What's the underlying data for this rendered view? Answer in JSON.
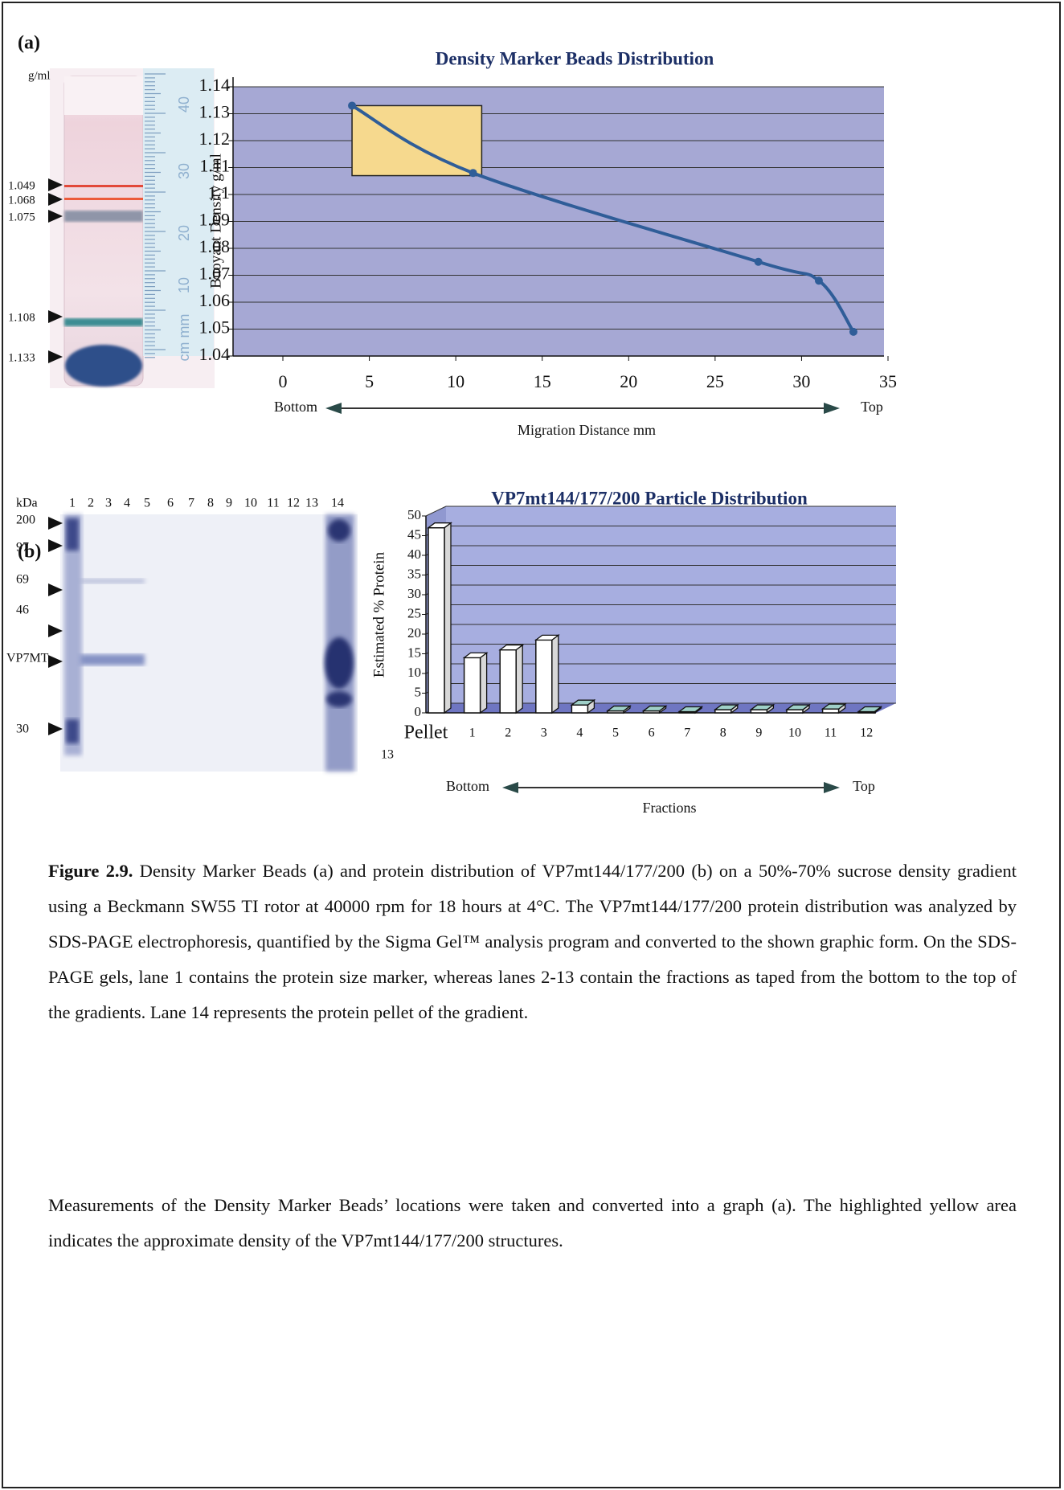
{
  "panel_labels": [
    "(a)",
    "(b)"
  ],
  "tube": {
    "unit": "g/ml",
    "markers": [
      "1.049",
      "1.068",
      "1.075",
      "1.108",
      "1.133"
    ],
    "ruler_labels": [
      "40",
      "30",
      "20",
      "10",
      "cm mm"
    ]
  },
  "gel": {
    "unit": "kDa",
    "lanes": [
      "1",
      "2",
      "3",
      "4",
      "5",
      "6",
      "7",
      "8",
      "9",
      "10",
      "11",
      "12",
      "13",
      "14"
    ],
    "markers": [
      "200",
      "97",
      "69",
      "46",
      "VP7MT",
      "30"
    ]
  },
  "chart_data": [
    {
      "type": "line",
      "title": "Density Marker Beads Distribution",
      "ylabel": "Buoyant Density g/ml",
      "xlabel": "Migration Distance mm",
      "direction_labels": [
        "Bottom",
        "Top"
      ],
      "x": [
        4,
        11,
        27.5,
        31,
        33
      ],
      "values": [
        1.133,
        1.108,
        1.075,
        1.068,
        1.049
      ],
      "color": "#2f5d98",
      "xlim": [
        0,
        35
      ],
      "xticks": [
        0,
        5,
        10,
        15,
        20,
        25,
        30,
        35
      ],
      "ylim": [
        1.04,
        1.14
      ],
      "yticks": [
        1.04,
        1.05,
        1.06,
        1.07,
        1.08,
        1.09,
        1.1,
        1.11,
        1.12,
        1.13,
        1.14
      ],
      "grid": true,
      "highlight": {
        "x": [
          4,
          11.5
        ],
        "y": [
          1.107,
          1.133
        ],
        "color": "#f6d98e"
      }
    },
    {
      "type": "bar",
      "title": "VP7mt144/177/200 Particle Distribution",
      "ylabel": "Estimated % Protein",
      "xlabel": "Fractions",
      "direction_labels": [
        "Bottom",
        "Top"
      ],
      "categories": [
        "Pellet",
        "1",
        "2",
        "3",
        "4",
        "5",
        "6",
        "7",
        "8",
        "9",
        "10",
        "11",
        "12"
      ],
      "category_note": "13",
      "values": [
        47,
        14,
        16,
        18.5,
        2,
        0.5,
        0.5,
        0.3,
        0.8,
        0.8,
        0.8,
        1,
        0.3
      ],
      "color": "#ffffff",
      "ylim": [
        0,
        50
      ],
      "yticks": [
        0,
        5,
        10,
        15,
        20,
        25,
        30,
        35,
        40,
        45,
        50
      ],
      "grid": true
    }
  ],
  "caption": {
    "figure_label": "Figure 2.9.",
    "text": "Density Marker Beads (a) and protein distribution of VP7mt144/177/200 (b) on a 50%-70% sucrose density gradient using a Beckmann SW55 TI rotor at 40000 rpm for 18 hours at 4°C. The VP7mt144/177/200 protein distribution was analyzed by SDS-PAGE electrophoresis, quantified by the Sigma Gel™ analysis program and converted to the shown graphic form. On the SDS-PAGE gels, lane 1 contains the protein size marker, whereas lanes 2-13 contain the fractions as taped from the bottom to the top of the gradients. Lane 14 represents the protein pellet of the gradient."
  },
  "paragraph": "Measurements of the Density Marker Beads’ locations were taken and converted into a graph (a). The highlighted yellow area indicates the approximate density of the VP7mt144/177/200 structures."
}
